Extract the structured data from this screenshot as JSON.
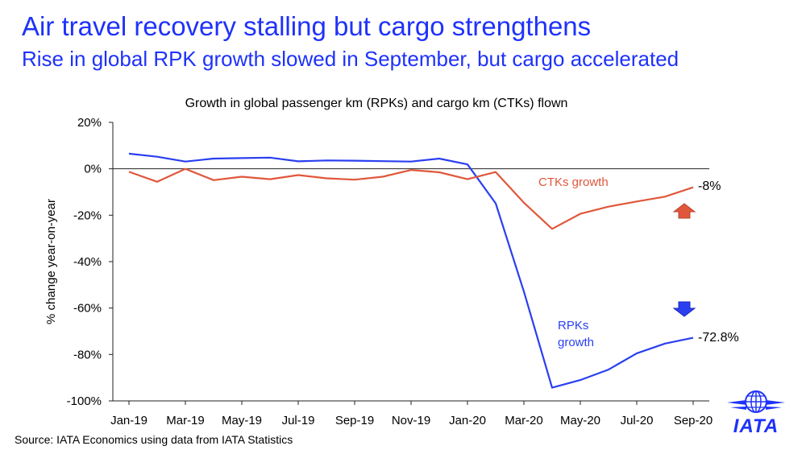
{
  "header": {
    "title": "Air travel recovery stalling but cargo strengthens",
    "subtitle": "Rise in global RPK growth slowed in September, but cargo accelerated"
  },
  "footer": {
    "source": "Source: IATA Economics using data from IATA Statistics",
    "logo_text": "IATA"
  },
  "colors": {
    "title": "#1e32fa",
    "rpk": "#2a3ff0",
    "ctk": "#e0573c"
  },
  "chart_data": {
    "type": "line",
    "title": "Growth in global passenger km (RPKs) and cargo km (CTKs) flown",
    "xlabel": "",
    "ylabel": "% change year-on-year",
    "ylim": [
      -100,
      20
    ],
    "yticks": [
      20,
      0,
      -20,
      -40,
      -60,
      -80,
      -100
    ],
    "ytick_labels": [
      "20%",
      "0%",
      "-20%",
      "-40%",
      "-60%",
      "-80%",
      "-100%"
    ],
    "x": [
      "Jan-19",
      "Feb-19",
      "Mar-19",
      "Apr-19",
      "May-19",
      "Jun-19",
      "Jul-19",
      "Aug-19",
      "Sep-19",
      "Oct-19",
      "Nov-19",
      "Dec-19",
      "Jan-20",
      "Feb-20",
      "Mar-20",
      "Apr-20",
      "May-20",
      "Jun-20",
      "Jul-20",
      "Aug-20",
      "Sep-20"
    ],
    "xtick_labels": [
      "Jan-19",
      "Mar-19",
      "May-19",
      "Jul-19",
      "Sep-19",
      "Nov-19",
      "Jan-20",
      "Mar-20",
      "May-20",
      "Jul-20",
      "Sep-20"
    ],
    "xtick_index": [
      0,
      2,
      4,
      6,
      8,
      10,
      12,
      14,
      16,
      18,
      20
    ],
    "series": [
      {
        "name": "RPKs growth",
        "color": "#2a3ff0",
        "values": [
          6.5,
          5.2,
          3.1,
          4.4,
          4.6,
          4.8,
          3.2,
          3.6,
          3.5,
          3.3,
          3.1,
          4.4,
          1.9,
          -14.9,
          -52.9,
          -94.3,
          -91.0,
          -86.5,
          -79.5,
          -75.3,
          -72.8
        ]
      },
      {
        "name": "CTKs growth",
        "color": "#e0573c",
        "values": [
          -1.3,
          -5.6,
          0.0,
          -4.9,
          -3.4,
          -4.5,
          -2.7,
          -4.1,
          -4.7,
          -3.4,
          -0.5,
          -1.5,
          -4.5,
          -1.4,
          -14.6,
          -25.9,
          -19.4,
          -16.3,
          -14.1,
          -12.0,
          -8.0
        ]
      }
    ],
    "annotations": {
      "ctk_label": "CTKs growth",
      "rpk_label_line1": "RPKs",
      "rpk_label_line2": "growth",
      "ctk_end_value": "-8%",
      "rpk_end_value": "-72.8%",
      "ctk_arrow": "up",
      "rpk_arrow": "down"
    }
  }
}
